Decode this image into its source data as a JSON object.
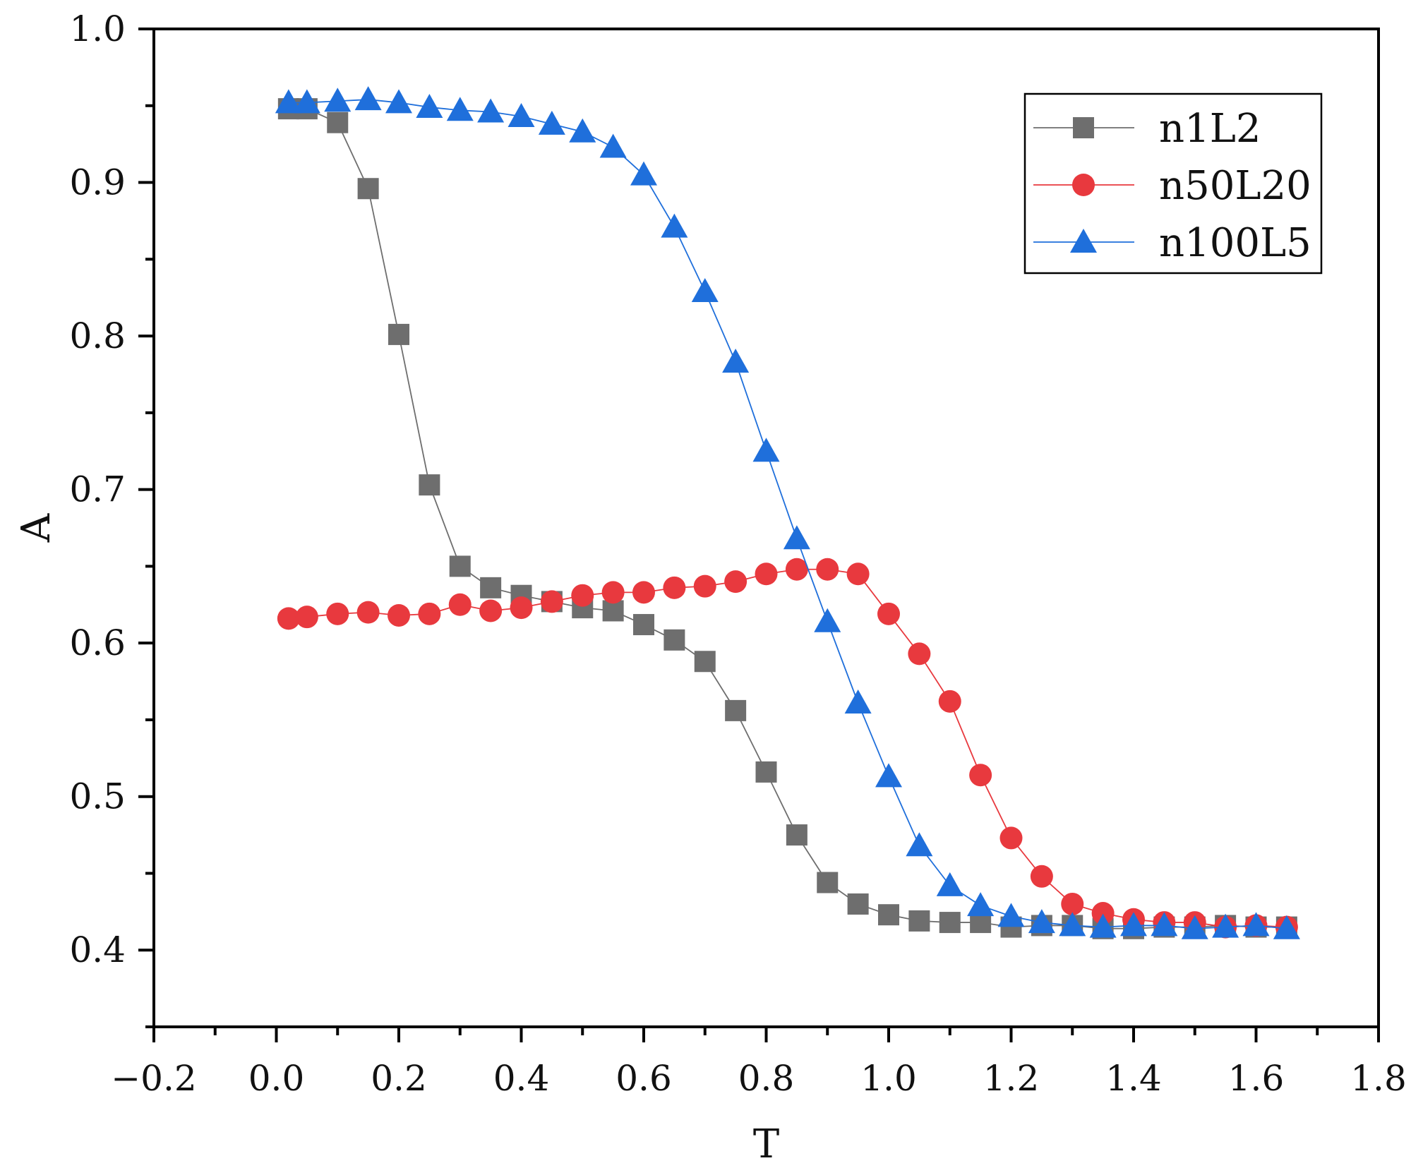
{
  "chart_data": {
    "type": "line",
    "title": "",
    "xlabel": "T",
    "ylabel": "A",
    "xlim": [
      -0.2,
      1.8
    ],
    "ylim": [
      0.35,
      1.0
    ],
    "xticks": [
      -0.2,
      0.0,
      0.2,
      0.4,
      0.6,
      0.8,
      1.0,
      1.2,
      1.4,
      1.6,
      1.8
    ],
    "xtick_labels": [
      "−0.2",
      "0.0",
      "0.2",
      "0.4",
      "0.6",
      "0.8",
      "1.0",
      "1.2",
      "1.4",
      "1.6",
      "1.8"
    ],
    "yticks": [
      0.4,
      0.5,
      0.6,
      0.7,
      0.8,
      0.9,
      1.0
    ],
    "ytick_labels": [
      "0.4",
      "0.5",
      "0.6",
      "0.7",
      "0.8",
      "0.9",
      "1.0"
    ],
    "grid": false,
    "legend_position": "top-right",
    "series": [
      {
        "name": "n1L2",
        "color": "#6e6e6e",
        "marker": "square",
        "x": [
          0.02,
          0.05,
          0.1,
          0.15,
          0.2,
          0.25,
          0.3,
          0.35,
          0.4,
          0.45,
          0.5,
          0.55,
          0.6,
          0.65,
          0.7,
          0.75,
          0.8,
          0.85,
          0.9,
          0.95,
          1.0,
          1.05,
          1.1,
          1.15,
          1.2,
          1.25,
          1.3,
          1.35,
          1.4,
          1.45,
          1.5,
          1.55,
          1.6,
          1.65
        ],
        "y": [
          0.948,
          0.948,
          0.939,
          0.896,
          0.801,
          0.703,
          0.65,
          0.636,
          0.631,
          0.627,
          0.623,
          0.621,
          0.612,
          0.602,
          0.588,
          0.556,
          0.516,
          0.475,
          0.444,
          0.43,
          0.423,
          0.419,
          0.418,
          0.418,
          0.415,
          0.416,
          0.416,
          0.414,
          0.414,
          0.415,
          0.415,
          0.416,
          0.415,
          0.415
        ]
      },
      {
        "name": "n50L20",
        "color": "#e8393e",
        "marker": "circle",
        "x": [
          0.02,
          0.05,
          0.1,
          0.15,
          0.2,
          0.25,
          0.3,
          0.35,
          0.4,
          0.45,
          0.5,
          0.55,
          0.6,
          0.65,
          0.7,
          0.75,
          0.8,
          0.85,
          0.9,
          0.95,
          1.0,
          1.05,
          1.1,
          1.15,
          1.2,
          1.25,
          1.3,
          1.35,
          1.4,
          1.45,
          1.5,
          1.55,
          1.6,
          1.65
        ],
        "y": [
          0.616,
          0.617,
          0.619,
          0.62,
          0.618,
          0.619,
          0.625,
          0.621,
          0.623,
          0.627,
          0.631,
          0.633,
          0.633,
          0.636,
          0.637,
          0.64,
          0.645,
          0.648,
          0.648,
          0.645,
          0.619,
          0.593,
          0.562,
          0.514,
          0.473,
          0.448,
          0.43,
          0.424,
          0.42,
          0.418,
          0.418,
          0.415,
          0.416,
          0.415
        ]
      },
      {
        "name": "n100L5",
        "color": "#1f6fdb",
        "marker": "triangle",
        "x": [
          0.02,
          0.05,
          0.1,
          0.15,
          0.2,
          0.25,
          0.3,
          0.35,
          0.4,
          0.45,
          0.5,
          0.55,
          0.6,
          0.65,
          0.7,
          0.75,
          0.8,
          0.85,
          0.9,
          0.95,
          1.0,
          1.05,
          1.1,
          1.15,
          1.2,
          1.25,
          1.3,
          1.35,
          1.4,
          1.45,
          1.5,
          1.55,
          1.6,
          1.65
        ],
        "y": [
          0.952,
          0.952,
          0.953,
          0.954,
          0.952,
          0.949,
          0.947,
          0.946,
          0.943,
          0.938,
          0.933,
          0.923,
          0.905,
          0.871,
          0.829,
          0.783,
          0.725,
          0.668,
          0.614,
          0.561,
          0.513,
          0.468,
          0.442,
          0.429,
          0.422,
          0.418,
          0.416,
          0.415,
          0.416,
          0.416,
          0.414,
          0.415,
          0.416,
          0.414
        ]
      }
    ]
  }
}
